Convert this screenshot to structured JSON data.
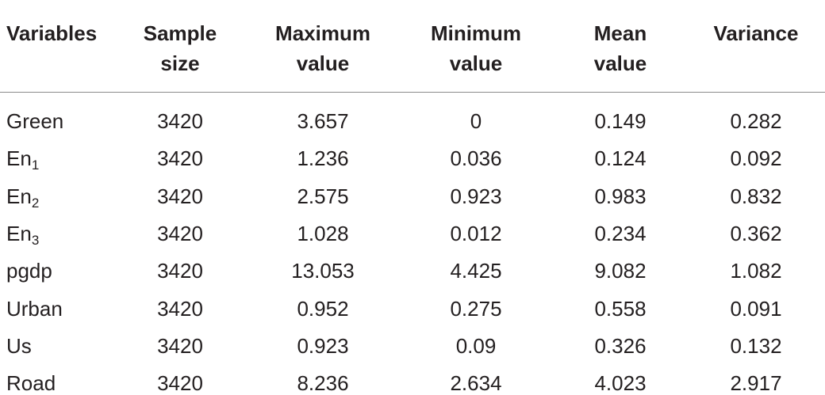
{
  "table": {
    "header": [
      [
        "Variables"
      ],
      [
        "Sample",
        "size"
      ],
      [
        "Maximum",
        "value"
      ],
      [
        "Minimum",
        "value"
      ],
      [
        "Mean",
        "value"
      ],
      [
        "Variance"
      ]
    ],
    "rows": [
      {
        "variable": "Green",
        "values": [
          "3420",
          "3.657",
          "0",
          "0.149",
          "0.282"
        ]
      },
      {
        "variable": "En",
        "subscript": "1",
        "values": [
          "3420",
          "1.236",
          "0.036",
          "0.124",
          "0.092"
        ]
      },
      {
        "variable": "En",
        "subscript": "2",
        "values": [
          "3420",
          "2.575",
          "0.923",
          "0.983",
          "0.832"
        ]
      },
      {
        "variable": "En",
        "subscript": "3",
        "values": [
          "3420",
          "1.028",
          "0.012",
          "0.234",
          "0.362"
        ]
      },
      {
        "variable": "pgdp",
        "values": [
          "3420",
          "13.053",
          "4.425",
          "9.082",
          "1.082"
        ]
      },
      {
        "variable": "Urban",
        "values": [
          "3420",
          "0.952",
          "0.275",
          "0.558",
          "0.091"
        ]
      },
      {
        "variable": "Us",
        "values": [
          "3420",
          "0.923",
          "0.09",
          "0.326",
          "0.132"
        ]
      },
      {
        "variable": "Road",
        "values": [
          "3420",
          "8.236",
          "2.634",
          "4.023",
          "2.917"
        ]
      }
    ]
  }
}
